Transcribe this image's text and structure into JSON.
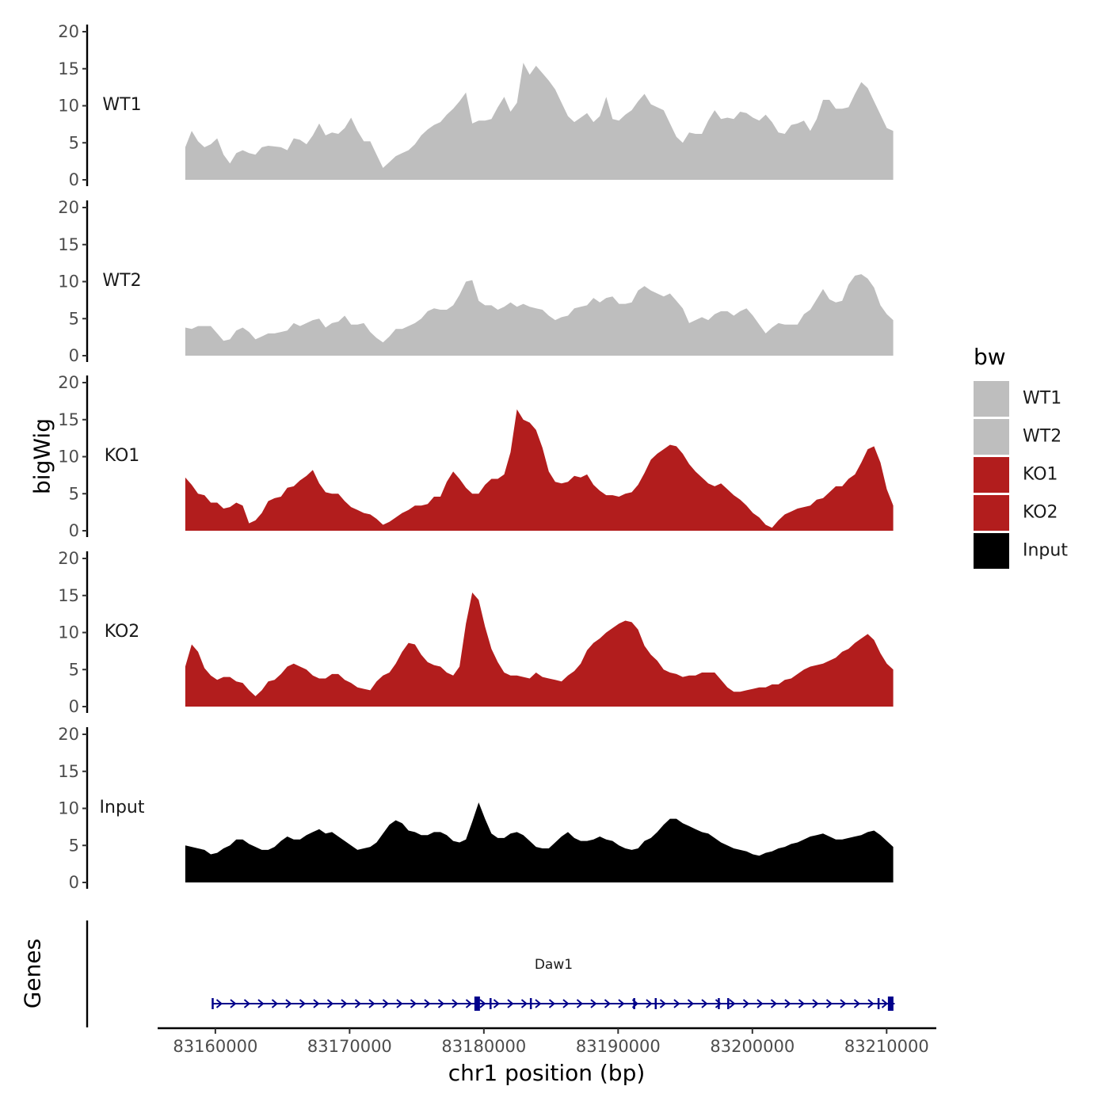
{
  "chart_data": {
    "type": "area",
    "title": "",
    "ylabel": "bigWig",
    "genes_ylabel": "Genes",
    "xlabel": "chr1 position (bp)",
    "x_range": [
      83157760,
      83210490
    ],
    "xlim": [
      83155700,
      83213700
    ],
    "ylim": [
      0,
      20
    ],
    "y_ticks": [
      "0",
      "5",
      "10",
      "15",
      "20"
    ],
    "x_ticks": [
      {
        "value": 83160000,
        "label": "83160000"
      },
      {
        "value": 83170000,
        "label": "83170000"
      },
      {
        "value": 83180000,
        "label": "83180000"
      },
      {
        "value": 83190000,
        "label": "83190000"
      },
      {
        "value": 83200000,
        "label": "83200000"
      },
      {
        "value": 83210000,
        "label": "83210000"
      }
    ],
    "legend": {
      "title": "bw",
      "position": "right",
      "entries": [
        {
          "label": "WT1",
          "color": "#bebebe"
        },
        {
          "label": "WT2",
          "color": "#bebebe"
        },
        {
          "label": "KO1",
          "color": "#b21d1d"
        },
        {
          "label": "KO2",
          "color": "#b21d1d"
        },
        {
          "label": "Input",
          "color": "#000000"
        }
      ]
    },
    "series": [
      {
        "name": "WT1",
        "color": "#bebebe",
        "values": [
          4.4,
          6.6,
          5.2,
          4.4,
          4.8,
          5.6,
          3.4,
          2.2,
          3.6,
          4.0,
          3.6,
          3.4,
          4.4,
          4.6,
          4.5,
          4.4,
          4.0,
          5.6,
          5.4,
          4.8,
          6.0,
          7.6,
          6.0,
          6.4,
          6.2,
          7.0,
          8.4,
          6.6,
          5.2,
          5.2,
          3.4,
          1.6,
          2.4,
          3.2,
          3.6,
          4.0,
          4.8,
          6.0,
          6.8,
          7.4,
          7.8,
          8.8,
          9.6,
          10.6,
          11.8,
          7.6,
          8.0,
          8.0,
          8.2,
          9.8,
          11.2,
          9.2,
          10.4,
          15.8,
          14.2,
          15.4,
          14.4,
          13.4,
          12.2,
          10.4,
          8.6,
          7.8,
          8.4,
          9.0,
          7.8,
          8.6,
          11.2,
          8.2,
          8.0,
          8.8,
          9.4,
          10.6,
          11.6,
          10.2,
          9.8,
          9.4,
          7.6,
          5.8,
          5.0,
          6.4,
          6.2,
          6.2,
          8.0,
          9.4,
          8.2,
          8.4,
          8.2,
          9.2,
          9.0,
          8.4,
          8.0,
          8.8,
          7.8,
          6.4,
          6.2,
          7.4,
          7.6,
          8.0,
          6.6,
          8.2,
          10.8,
          10.8,
          9.6,
          9.6,
          9.8,
          11.6,
          13.2,
          12.4,
          10.6,
          8.8,
          7.0,
          6.6
        ]
      },
      {
        "name": "WT2",
        "color": "#bebebe",
        "values": [
          3.8,
          3.6,
          4.0,
          4.0,
          4.0,
          3.0,
          2.0,
          2.2,
          3.4,
          3.8,
          3.2,
          2.2,
          2.6,
          3.0,
          3.0,
          3.2,
          3.4,
          4.4,
          4.0,
          4.4,
          4.8,
          5.0,
          3.8,
          4.4,
          4.6,
          5.4,
          4.2,
          4.2,
          4.4,
          3.2,
          2.4,
          1.8,
          2.6,
          3.6,
          3.6,
          4.0,
          4.4,
          5.0,
          6.0,
          6.4,
          6.2,
          6.2,
          6.8,
          8.2,
          10.0,
          10.2,
          7.4,
          6.8,
          6.8,
          6.2,
          6.6,
          7.2,
          6.6,
          7.0,
          6.6,
          6.4,
          6.2,
          5.4,
          4.8,
          5.2,
          5.4,
          6.4,
          6.6,
          6.8,
          7.8,
          7.2,
          7.8,
          8.0,
          7.0,
          7.0,
          7.2,
          8.8,
          9.4,
          8.8,
          8.4,
          8.0,
          8.4,
          7.4,
          6.4,
          4.4,
          4.8,
          5.2,
          4.8,
          5.6,
          6.0,
          6.0,
          5.4,
          6.0,
          6.4,
          5.4,
          4.2,
          3.0,
          3.8,
          4.4,
          4.2,
          4.2,
          4.2,
          5.6,
          6.2,
          7.6,
          9.0,
          7.6,
          7.2,
          7.4,
          9.6,
          10.8,
          11.0,
          10.4,
          9.2,
          6.8,
          5.6,
          4.8
        ]
      },
      {
        "name": "KO1",
        "color": "#b21d1d",
        "values": [
          7.2,
          6.2,
          5.0,
          4.8,
          3.8,
          3.8,
          3.0,
          3.2,
          3.8,
          3.4,
          1.0,
          1.4,
          2.4,
          4.0,
          4.4,
          4.6,
          5.8,
          6.0,
          6.8,
          7.4,
          8.2,
          6.4,
          5.2,
          5.0,
          5.0,
          4.0,
          3.2,
          2.8,
          2.4,
          2.2,
          1.6,
          0.8,
          1.2,
          1.8,
          2.4,
          2.8,
          3.4,
          3.4,
          3.6,
          4.6,
          4.6,
          6.6,
          8.0,
          7.0,
          5.8,
          5.0,
          5.0,
          6.2,
          7.0,
          7.0,
          7.6,
          10.6,
          16.4,
          15.0,
          14.6,
          13.6,
          11.2,
          8.0,
          6.6,
          6.4,
          6.6,
          7.4,
          7.2,
          7.6,
          6.2,
          5.4,
          4.8,
          4.8,
          4.6,
          5.0,
          5.2,
          6.2,
          7.8,
          9.6,
          10.4,
          11.0,
          11.6,
          11.4,
          10.4,
          9.0,
          8.0,
          7.2,
          6.4,
          6.0,
          6.4,
          5.6,
          4.8,
          4.2,
          3.4,
          2.4,
          1.8,
          0.8,
          0.4,
          1.4,
          2.2,
          2.6,
          3.0,
          3.2,
          3.4,
          4.2,
          4.4,
          5.2,
          6.0,
          6.0,
          7.0,
          7.6,
          9.2,
          11.0,
          11.4,
          9.2,
          5.6,
          3.4
        ]
      },
      {
        "name": "KO2",
        "color": "#b21d1d",
        "values": [
          5.4,
          8.4,
          7.4,
          5.2,
          4.2,
          3.6,
          4.0,
          4.0,
          3.4,
          3.2,
          2.2,
          1.4,
          2.2,
          3.4,
          3.6,
          4.4,
          5.4,
          5.8,
          5.4,
          5.0,
          4.2,
          3.8,
          3.8,
          4.4,
          4.4,
          3.6,
          3.2,
          2.6,
          2.4,
          2.2,
          3.4,
          4.2,
          4.6,
          5.8,
          7.4,
          8.6,
          8.4,
          7.0,
          6.0,
          5.6,
          5.4,
          4.6,
          4.2,
          5.4,
          11.2,
          15.4,
          14.4,
          10.8,
          7.8,
          6.0,
          4.6,
          4.2,
          4.2,
          4.0,
          3.8,
          4.6,
          4.0,
          3.8,
          3.6,
          3.4,
          4.2,
          4.8,
          5.8,
          7.6,
          8.6,
          9.2,
          10.0,
          10.6,
          11.2,
          11.6,
          11.4,
          10.4,
          8.2,
          7.0,
          6.2,
          5.0,
          4.6,
          4.4,
          4.0,
          4.2,
          4.2,
          4.6,
          4.6,
          4.6,
          3.6,
          2.6,
          2.0,
          2.0,
          2.2,
          2.4,
          2.6,
          2.6,
          3.0,
          3.0,
          3.6,
          3.8,
          4.4,
          5.0,
          5.4,
          5.6,
          5.8,
          6.2,
          6.6,
          7.4,
          7.8,
          8.6,
          9.2,
          9.8,
          9.0,
          7.2,
          5.8,
          5.0
        ]
      },
      {
        "name": "Input",
        "color": "#000000",
        "values": [
          5.0,
          4.8,
          4.6,
          4.4,
          3.8,
          4.0,
          4.6,
          5.0,
          5.8,
          5.8,
          5.2,
          4.8,
          4.4,
          4.4,
          4.8,
          5.6,
          6.2,
          5.8,
          5.8,
          6.4,
          6.8,
          7.2,
          6.6,
          6.8,
          6.2,
          5.6,
          5.0,
          4.4,
          4.6,
          4.8,
          5.4,
          6.6,
          7.8,
          8.4,
          8.0,
          7.0,
          6.8,
          6.4,
          6.4,
          6.8,
          6.8,
          6.4,
          5.6,
          5.4,
          5.8,
          8.2,
          10.8,
          8.6,
          6.6,
          6.0,
          6.0,
          6.6,
          6.8,
          6.4,
          5.6,
          4.8,
          4.6,
          4.6,
          5.4,
          6.2,
          6.8,
          6.0,
          5.6,
          5.6,
          5.8,
          6.2,
          5.8,
          5.6,
          5.0,
          4.6,
          4.4,
          4.6,
          5.6,
          6.0,
          6.8,
          7.8,
          8.6,
          8.6,
          8.0,
          7.6,
          7.2,
          6.8,
          6.6,
          6.0,
          5.4,
          5.0,
          4.6,
          4.4,
          4.2,
          3.8,
          3.6,
          4.0,
          4.2,
          4.6,
          4.8,
          5.2,
          5.4,
          5.8,
          6.2,
          6.4,
          6.6,
          6.2,
          5.8,
          5.8,
          6.0,
          6.2,
          6.4,
          6.8,
          7.0,
          6.4,
          5.6,
          4.8
        ]
      }
    ],
    "genes": [
      {
        "name": "Daw1",
        "start": 83159800,
        "end": 83210600,
        "strand": "+",
        "color": "#00008b",
        "exons": [
          83159800,
          83179500,
          83180500,
          83183500,
          83191200,
          83192800,
          83197500,
          83198200,
          83209400,
          83210300
        ]
      }
    ]
  }
}
